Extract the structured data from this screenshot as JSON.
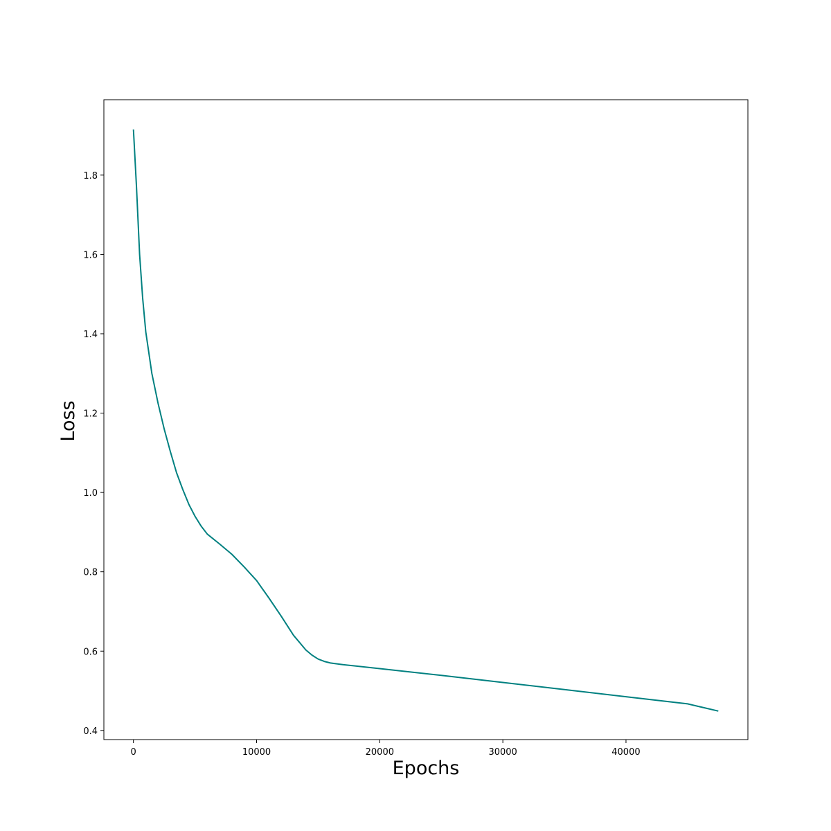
{
  "chart_data": {
    "type": "line",
    "title": "",
    "xlabel": "Epochs",
    "ylabel": "Loss",
    "xlim": [
      -2400,
      49900
    ],
    "ylim": [
      0.377,
      1.99
    ],
    "xticks": [
      0,
      10000,
      20000,
      30000,
      40000
    ],
    "xtick_labels": [
      "0",
      "10000",
      "20000",
      "30000",
      "40000"
    ],
    "yticks": [
      0.4,
      0.6,
      0.8,
      1.0,
      1.2,
      1.4,
      1.6,
      1.8
    ],
    "ytick_labels": [
      "0.4",
      "0.6",
      "0.8",
      "1.0",
      "1.2",
      "1.4",
      "1.6",
      "1.8"
    ],
    "grid": false,
    "legend": "none",
    "colors": {
      "line": "#008080",
      "axes": "#000000",
      "background": "#ffffff"
    },
    "series": [
      {
        "x": [
          0,
          250,
          500,
          750,
          1000,
          1500,
          2000,
          2500,
          3000,
          3500,
          4000,
          4500,
          5000,
          5500,
          6000,
          7000,
          8000,
          9000,
          10000,
          11000,
          12000,
          13000,
          14000,
          14500,
          15000,
          15500,
          16000,
          17000,
          20000,
          25000,
          30000,
          35000,
          40000,
          45000,
          47500
        ],
        "y": [
          1.915,
          1.77,
          1.6,
          1.49,
          1.405,
          1.3,
          1.225,
          1.16,
          1.103,
          1.05,
          1.008,
          0.97,
          0.94,
          0.915,
          0.895,
          0.87,
          0.844,
          0.812,
          0.778,
          0.734,
          0.688,
          0.64,
          0.603,
          0.59,
          0.58,
          0.574,
          0.57,
          0.566,
          0.556,
          0.539,
          0.521,
          0.503,
          0.485,
          0.467,
          0.449
        ]
      }
    ]
  }
}
